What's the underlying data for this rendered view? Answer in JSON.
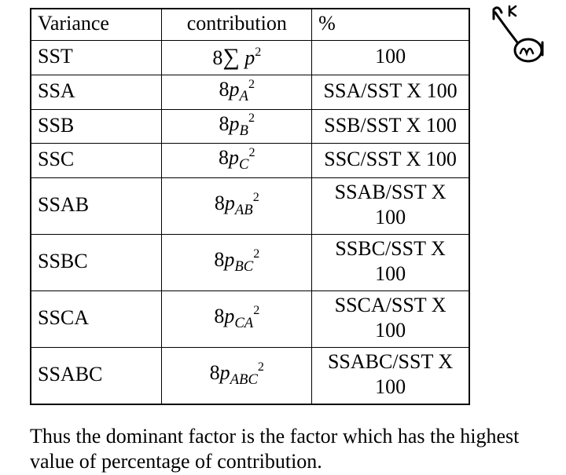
{
  "table": {
    "columns": [
      "Variance",
      "contribution",
      "%"
    ],
    "rows": [
      {
        "variance": "SST",
        "contribHTML": "8<span class='sigma'>&sum;</span> <span class='ital'>p</span><span class='sup'>2</span>",
        "percent": "100",
        "percentSmall": false
      },
      {
        "variance": "SSA",
        "contribHTML": "8<span class='ital'>p</span><span class='sub'>A</span><span class='sup'>2</span>",
        "percent": "SSA/SST X 100",
        "percentSmall": true
      },
      {
        "variance": "SSB",
        "contribHTML": "8<span class='ital'>p</span><span class='sub'>B</span><span class='sup'>2</span>",
        "percent": "SSB/SST X 100",
        "percentSmall": true
      },
      {
        "variance": "SSC",
        "contribHTML": "8<span class='ital'>p</span><span class='sub'>C</span><span class='sup'>2</span>",
        "percent": "SSC/SST X 100",
        "percentSmall": true
      },
      {
        "variance": "SSAB",
        "contribHTML": "8<span class='ital'>p</span><span class='sub'>AB</span><span class='sup'>2</span>",
        "percent": "SSAB/SST X 100",
        "percentSmall": true
      },
      {
        "variance": "SSBC",
        "contribHTML": "8<span class='ital'>p</span><span class='sub'>BC</span><span class='sup'>2</span>",
        "percent": "SSBC/SST X 100",
        "percentSmall": true
      },
      {
        "variance": "SSCA",
        "contribHTML": "8<span class='ital'>p</span><span class='sub'>CA</span><span class='sup'>2</span>",
        "percent": "SSCA/SST X 100",
        "percentSmall": true
      },
      {
        "variance": "SSABC",
        "contribHTML": "8<span class='ital'>p</span><span class='sub'>ABC</span><span class='sup'>2</span>",
        "percent": "SSABC/SST X 100",
        "percentSmall": true
      }
    ]
  },
  "caption": "Thus the dominant factor is the factor which has the highest value of percentage of contribution.",
  "colors": {
    "border": "#000000",
    "text": "#000000",
    "background": "#ffffff"
  }
}
